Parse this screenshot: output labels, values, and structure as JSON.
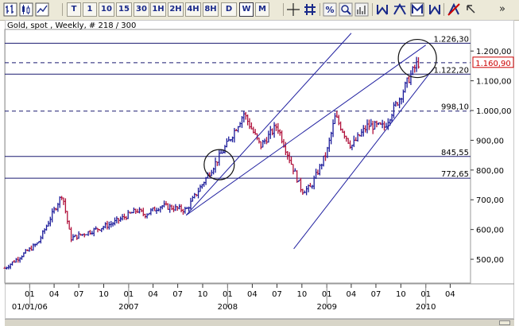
{
  "toolbar": {
    "period_buttons": [
      {
        "label": "T",
        "active": false
      },
      {
        "label": "1",
        "active": false
      },
      {
        "label": "10",
        "active": false
      },
      {
        "label": "15",
        "active": false
      },
      {
        "label": "30",
        "active": false
      },
      {
        "label": "1H",
        "active": false
      },
      {
        "label": "2H",
        "active": false
      },
      {
        "label": "4H",
        "active": false
      },
      {
        "label": "8H",
        "active": false
      },
      {
        "label": "D",
        "active": false
      },
      {
        "label": "W",
        "active": true
      },
      {
        "label": "M",
        "active": false
      }
    ],
    "overflow_label": "»",
    "icons": [
      "bar-chart-icon",
      "candlestick-chart-icon",
      "line-chart-icon",
      "crosshair-icon",
      "grid-icon",
      "percent-scale-icon",
      "zoom-icon",
      "volume-icon",
      "trend-tool-icon",
      "channel-tool-icon",
      "cycle-tool-icon",
      "fibonacci-tool-icon",
      "no-drawing-icon",
      "arrow-tool-icon"
    ]
  },
  "chart_title": "Gold, spot , Weekly, # 218 / 300",
  "colors": {
    "up_bar": "#1a1a9a",
    "down_bar": "#b0103a",
    "trend_line": "#2020a0",
    "horizontal_line": "#1a1a70",
    "price_marker_border": "#cc0000",
    "price_marker_text": "#cc0000"
  },
  "chart_data": {
    "type": "ohlc",
    "title": "Gold, spot , Weekly, # 218 / 300",
    "ylim": [
      420,
      1270
    ],
    "y_ticks": [
      "500,00",
      "600,00",
      "700,00",
      "800,00",
      "900,00",
      "1.000,00",
      "1.100,00",
      "1.200,00"
    ],
    "y_tick_values": [
      500,
      600,
      700,
      800,
      900,
      1000,
      1100,
      1200
    ],
    "x_tick_labels": [
      {
        "label": "01",
        "date": "2006-01"
      },
      {
        "label": "04",
        "date": "2006-04"
      },
      {
        "label": "07",
        "date": "2006-07"
      },
      {
        "label": "10",
        "date": "2006-10"
      },
      {
        "label": "01",
        "date": "2007-01"
      },
      {
        "label": "04",
        "date": "2007-04"
      },
      {
        "label": "07",
        "date": "2007-07"
      },
      {
        "label": "10",
        "date": "2007-10"
      },
      {
        "label": "01",
        "date": "2008-01"
      },
      {
        "label": "04",
        "date": "2008-04"
      },
      {
        "label": "07",
        "date": "2008-07"
      },
      {
        "label": "10",
        "date": "2008-10"
      },
      {
        "label": "01",
        "date": "2009-01"
      },
      {
        "label": "04",
        "date": "2009-04"
      },
      {
        "label": "07",
        "date": "2009-07"
      },
      {
        "label": "10",
        "date": "2009-10"
      },
      {
        "label": "01",
        "date": "2010-01"
      },
      {
        "label": "04",
        "date": "2010-04"
      }
    ],
    "x_year_labels": [
      {
        "label": "01/01/06",
        "date": "2006-01"
      },
      {
        "label": "2007",
        "date": "2007-01"
      },
      {
        "label": "2008",
        "date": "2008-01"
      },
      {
        "label": "2009",
        "date": "2009-01"
      },
      {
        "label": "2010",
        "date": "2010-01"
      }
    ],
    "x_range": [
      "2005-10",
      "2010-06"
    ],
    "key_points": [
      {
        "date": "2005-10",
        "price": 470
      },
      {
        "date": "2006-02",
        "price": 555
      },
      {
        "date": "2006-05",
        "price": 720
      },
      {
        "date": "2006-06",
        "price": 570
      },
      {
        "date": "2006-09",
        "price": 600
      },
      {
        "date": "2006-11",
        "price": 620
      },
      {
        "date": "2007-02",
        "price": 665
      },
      {
        "date": "2007-03",
        "price": 650
      },
      {
        "date": "2007-05",
        "price": 680
      },
      {
        "date": "2007-08",
        "price": 665
      },
      {
        "date": "2007-11",
        "price": 800
      },
      {
        "date": "2008-01",
        "price": 890
      },
      {
        "date": "2008-03",
        "price": 990
      },
      {
        "date": "2008-05",
        "price": 880
      },
      {
        "date": "2008-07",
        "price": 950
      },
      {
        "date": "2008-09",
        "price": 800
      },
      {
        "date": "2008-10",
        "price": 730
      },
      {
        "date": "2008-11",
        "price": 740
      },
      {
        "date": "2009-01",
        "price": 860
      },
      {
        "date": "2009-02",
        "price": 980
      },
      {
        "date": "2009-04",
        "price": 880
      },
      {
        "date": "2009-06",
        "price": 950
      },
      {
        "date": "2009-08",
        "price": 945
      },
      {
        "date": "2009-09",
        "price": 1000
      },
      {
        "date": "2009-10",
        "price": 1050
      },
      {
        "date": "2009-11",
        "price": 1110
      },
      {
        "date": "2009-12",
        "price": 1160
      }
    ],
    "horizontal_levels": [
      {
        "value": 1226.3,
        "label": "1.226,30",
        "style": "solid"
      },
      {
        "value": 1160.9,
        "label": "",
        "style": "dashed"
      },
      {
        "value": 1122.2,
        "label": "1.122,20",
        "style": "solid"
      },
      {
        "value": 998.1,
        "label": "998,10",
        "style": "dashed"
      },
      {
        "value": 845.55,
        "label": "845,55",
        "style": "solid"
      },
      {
        "value": 772.65,
        "label": "772,65",
        "style": "solid"
      }
    ],
    "current_price": {
      "value": 1160.9,
      "label": "1.160,90"
    },
    "trend_lines": [
      {
        "from": {
          "date": "2007-08",
          "price": 648
        },
        "to": {
          "date": "2009-04",
          "price": 1260
        }
      },
      {
        "from": {
          "date": "2007-08",
          "price": 648
        },
        "to": {
          "date": "2010-01",
          "price": 1220
        }
      },
      {
        "from": {
          "date": "2008-09",
          "price": 535
        },
        "to": {
          "date": "2010-02",
          "price": 1145
        }
      }
    ],
    "circles": [
      {
        "date": "2007-12",
        "price": 818
      },
      {
        "date": "2009-12",
        "price": 1175
      }
    ],
    "grid": false
  }
}
